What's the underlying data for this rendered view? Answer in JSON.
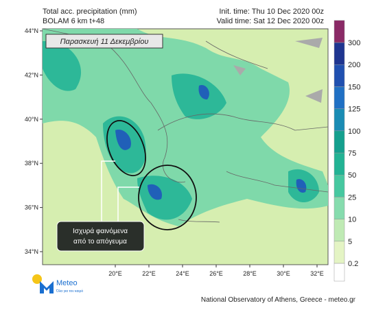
{
  "header": {
    "title": "Total acc. precipitation (mm)",
    "model": "BOLAM 6 km t+48",
    "init_time": "Init. time: Thu 10 Dec 2020 00z",
    "valid_time": "Valid time: Sat 12 Dec 2020 00z"
  },
  "date_label": "Παρασκευή 11 Δεκεμβρίου",
  "callout": [
    "Ισχυρά φαινόμενα",
    "από το απόγευμα"
  ],
  "lat_ticks": [
    {
      "value": 44,
      "label": "44°N"
    },
    {
      "value": 42,
      "label": "42°N"
    },
    {
      "value": 40,
      "label": "40°N"
    },
    {
      "value": 38,
      "label": "38°N"
    },
    {
      "value": 36,
      "label": "36°N"
    },
    {
      "value": 34,
      "label": "34°N"
    }
  ],
  "lon_ticks": [
    {
      "value": 20,
      "label": "20°E"
    },
    {
      "value": 22,
      "label": "22°E"
    },
    {
      "value": 24,
      "label": "24°E"
    },
    {
      "value": 26,
      "label": "26°E"
    },
    {
      "value": 28,
      "label": "28°E"
    },
    {
      "value": 30,
      "label": "30°E"
    },
    {
      "value": 32,
      "label": "32°E"
    }
  ],
  "colorbar": {
    "levels": [
      0.2,
      5,
      10,
      25,
      50,
      75,
      100,
      125,
      150,
      200,
      300
    ],
    "colors": [
      "#ffffff",
      "#e4f4c4",
      "#bfeab4",
      "#86dcae",
      "#46c8a0",
      "#22b394",
      "#14a08e",
      "#1a8cb4",
      "#2070c4",
      "#2050b0",
      "#1f3590",
      "#8a2a66"
    ]
  },
  "logo": {
    "name": "Meteo",
    "tagline": "Όλα για τον καιρό"
  },
  "footer": "National Observatory of Athens, Greece - meteo.gr"
}
